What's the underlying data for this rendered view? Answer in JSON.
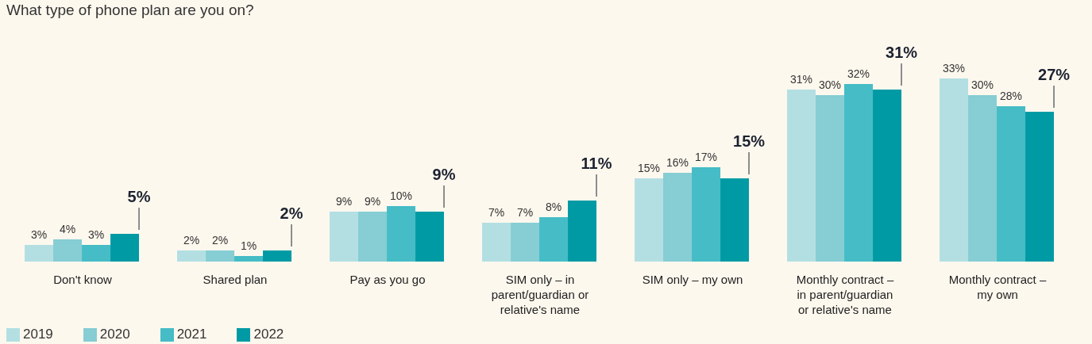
{
  "chart_data": {
    "type": "bar",
    "title": "What type of phone plan are you on?",
    "categories": [
      "Don't know",
      "Shared plan",
      "Pay as you go",
      "SIM only – in parent/guardian or relative's name",
      "SIM only – my own",
      "Monthly contract – in parent/guardian or relative's name",
      "Monthly contract – my own"
    ],
    "series": [
      {
        "name": "2019",
        "color": "#b3dfe3",
        "values": [
          3,
          2,
          9,
          7,
          15,
          31,
          33
        ],
        "value_labels": [
          "3%",
          "2%",
          "9%",
          "7%",
          "15%",
          "31%",
          "33%"
        ]
      },
      {
        "name": "2020",
        "color": "#86cdd4",
        "values": [
          4,
          2,
          9,
          7,
          16,
          30,
          30
        ],
        "value_labels": [
          "4%",
          "2%",
          "9%",
          "7%",
          "16%",
          "30%",
          "30%"
        ]
      },
      {
        "name": "2021",
        "color": "#45bcc6",
        "values": [
          3,
          1,
          10,
          8,
          17,
          32,
          28
        ],
        "value_labels": [
          "3%",
          "1%",
          "10%",
          "8%",
          "17%",
          "32%",
          "28%"
        ]
      },
      {
        "name": "2022",
        "color": "#009aa5",
        "values": [
          5,
          2,
          9,
          11,
          15,
          31,
          27
        ],
        "value_labels": [
          "5%",
          "2%",
          "9%",
          "11%",
          "15%",
          "31%",
          "27%"
        ]
      }
    ],
    "legend": "bottom left",
    "grid": false
  }
}
